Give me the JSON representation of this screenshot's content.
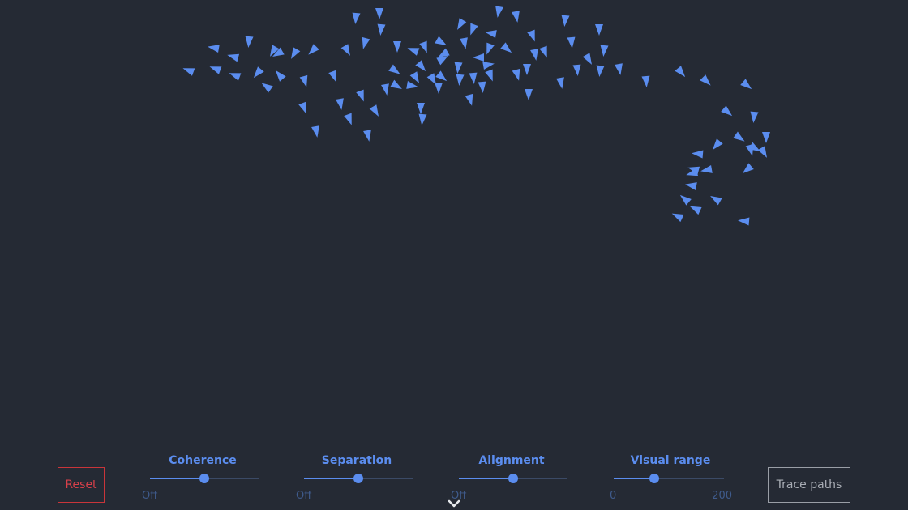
{
  "buttons": {
    "reset": "Reset",
    "trace": "Trace paths"
  },
  "sliders": [
    {
      "label": "Coherence",
      "min_label": "Off",
      "max_label": "",
      "value_fraction": 0.5
    },
    {
      "label": "Separation",
      "min_label": "Off",
      "max_label": "",
      "value_fraction": 0.5
    },
    {
      "label": "Alignment",
      "min_label": "Off",
      "max_label": "",
      "value_fraction": 0.5
    },
    {
      "label": "Visual range",
      "min_label": "0",
      "max_label": "200",
      "value_fraction": 0.37
    }
  ],
  "colors": {
    "boid": "#5b8def",
    "accent": "#5b8def",
    "reset": "#d8404a",
    "background": "#252a34"
  },
  "icons": {
    "expand": "chevron-down-icon"
  }
}
